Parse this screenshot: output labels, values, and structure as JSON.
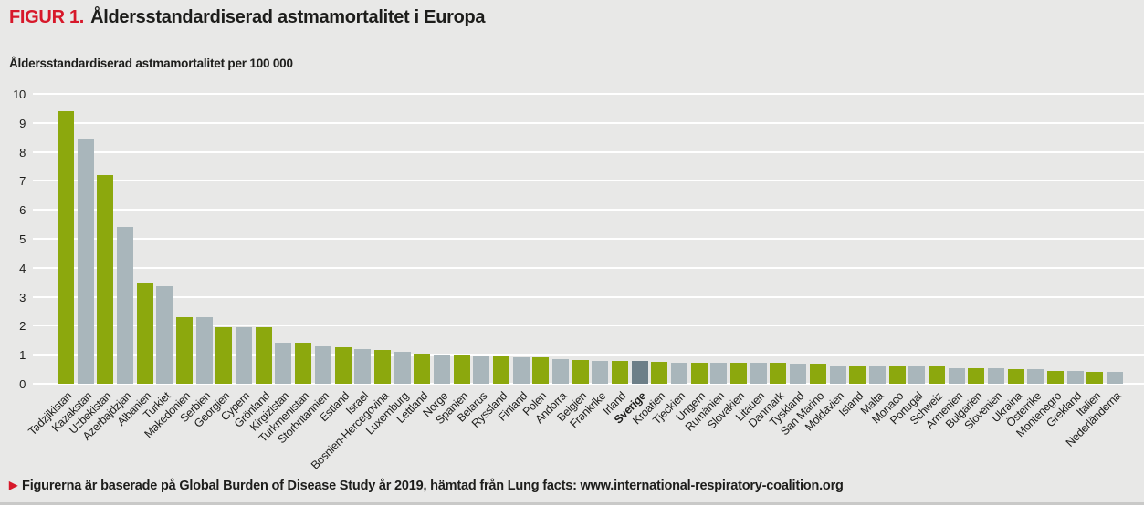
{
  "figure": {
    "label": "FIGUR 1.",
    "title": "Åldersstandardiserad astmamortalitet i Europa",
    "subtitle": "Åldersstandardiserad astmamortalitet per 100 000",
    "footnote": "Figurerna är baserade på Global Burden of Disease Study år 2019, hämtad från Lung facts: www.international-respiratory-coalition.org"
  },
  "icons": {
    "footnote_bullet": "▶"
  },
  "colors": {
    "background": "#e8e8e7",
    "gridline": "#ffffff",
    "text": "#1d1d1b",
    "accent_red": "#d7182a",
    "bar_green": "#8ca80d",
    "bar_gray": "#a9b6bb",
    "bar_highlight": "#6d7f88"
  },
  "chart_data": {
    "type": "bar",
    "title": "Åldersstandardiserad astmamortalitet i Europa",
    "ylabel": "Åldersstandardiserad astmamortalitet per 100 000",
    "xlabel": "",
    "ylim": [
      0,
      10
    ],
    "yticks": [
      0,
      1,
      2,
      3,
      4,
      5,
      6,
      7,
      8,
      9,
      10
    ],
    "grid": "horizontal",
    "legend": "none",
    "x_label_rotation_deg": -45,
    "highlight_category": "Sverige",
    "categories": [
      "Tadzjikistan",
      "Kazakstan",
      "Uzbekistan",
      "Azerbajdzjan",
      "Albanien",
      "Turkiet",
      "Makedonien",
      "Serbien",
      "Georgien",
      "Cypern",
      "Grönland",
      "Kirgizistan",
      "Turkmenistan",
      "Storbritannien",
      "Estland",
      "Israel",
      "Bosnien-Hercegovina",
      "Luxemburg",
      "Lettland",
      "Norge",
      "Spanien",
      "Belarus",
      "Ryssland",
      "Finland",
      "Polen",
      "Andorra",
      "Belgien",
      "Frankrike",
      "Irland",
      "Sverige",
      "Kroatien",
      "Tjeckien",
      "Ungern",
      "Rumänien",
      "Slovakien",
      "Litauen",
      "Danmark",
      "Tyskland",
      "San Marino",
      "Moldavien",
      "Island",
      "Malta",
      "Monaco",
      "Portugal",
      "Schweiz",
      "Armenien",
      "Bulgarien",
      "Slovenien",
      "Ukraina",
      "Österrike",
      "Montenegro",
      "Grekland",
      "Italien",
      "Nederländerna"
    ],
    "values": [
      9.4,
      8.45,
      7.2,
      5.4,
      3.45,
      3.35,
      2.3,
      2.3,
      1.95,
      1.95,
      1.95,
      1.4,
      1.4,
      1.3,
      1.25,
      1.2,
      1.15,
      1.1,
      1.05,
      1.0,
      1.0,
      0.95,
      0.95,
      0.9,
      0.9,
      0.85,
      0.82,
      0.8,
      0.8,
      0.8,
      0.75,
      0.73,
      0.73,
      0.72,
      0.72,
      0.71,
      0.71,
      0.7,
      0.7,
      0.64,
      0.63,
      0.62,
      0.62,
      0.61,
      0.6,
      0.55,
      0.53,
      0.52,
      0.51,
      0.5,
      0.44,
      0.43,
      0.42,
      0.4
    ]
  }
}
